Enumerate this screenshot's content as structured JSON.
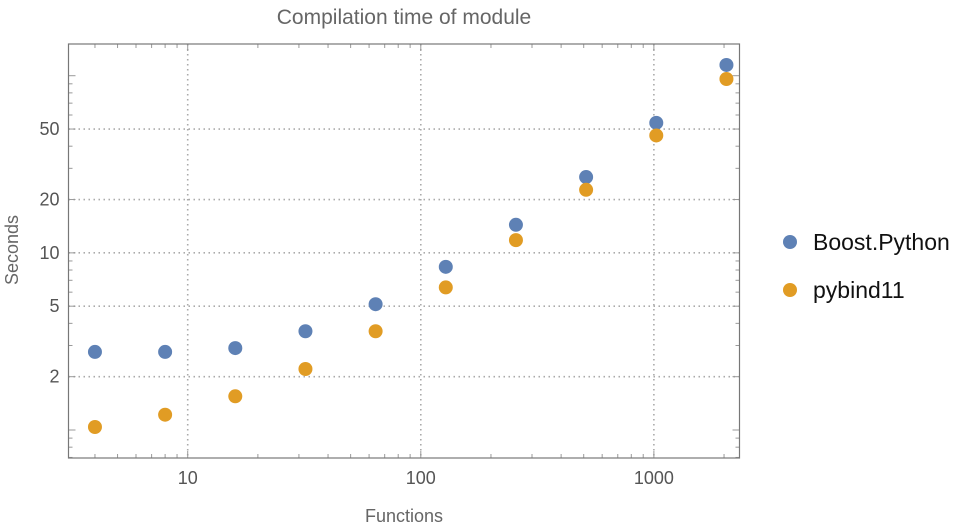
{
  "chart_data": {
    "type": "scatter",
    "title": "Compilation time of module",
    "xlabel": "Functions",
    "ylabel": "Seconds",
    "x_scale": "log",
    "y_scale": "log",
    "xlim": [
      3.08,
      2330
    ],
    "ylim": [
      0.695,
      151
    ],
    "x_ticks": [
      10,
      100,
      1000
    ],
    "x_tick_labels": [
      "10",
      "100",
      "1000"
    ],
    "y_ticks": [
      2,
      5,
      10,
      20,
      50
    ],
    "y_tick_labels": [
      "2",
      "5",
      "10",
      "20",
      "50"
    ],
    "grid": true,
    "legend_position": "right",
    "x": [
      4,
      8,
      16,
      32,
      64,
      128,
      256,
      512,
      1024,
      2048
    ],
    "series": [
      {
        "name": "Boost.Python",
        "color": "#5e81b5",
        "values": [
          2.76,
          2.76,
          2.9,
          3.61,
          5.13,
          8.34,
          14.4,
          26.8,
          54.2,
          115
        ]
      },
      {
        "name": "pybind11",
        "color": "#e19c24",
        "values": [
          1.04,
          1.22,
          1.55,
          2.21,
          3.61,
          6.38,
          11.8,
          22.7,
          46.0,
          95.8
        ]
      }
    ]
  }
}
